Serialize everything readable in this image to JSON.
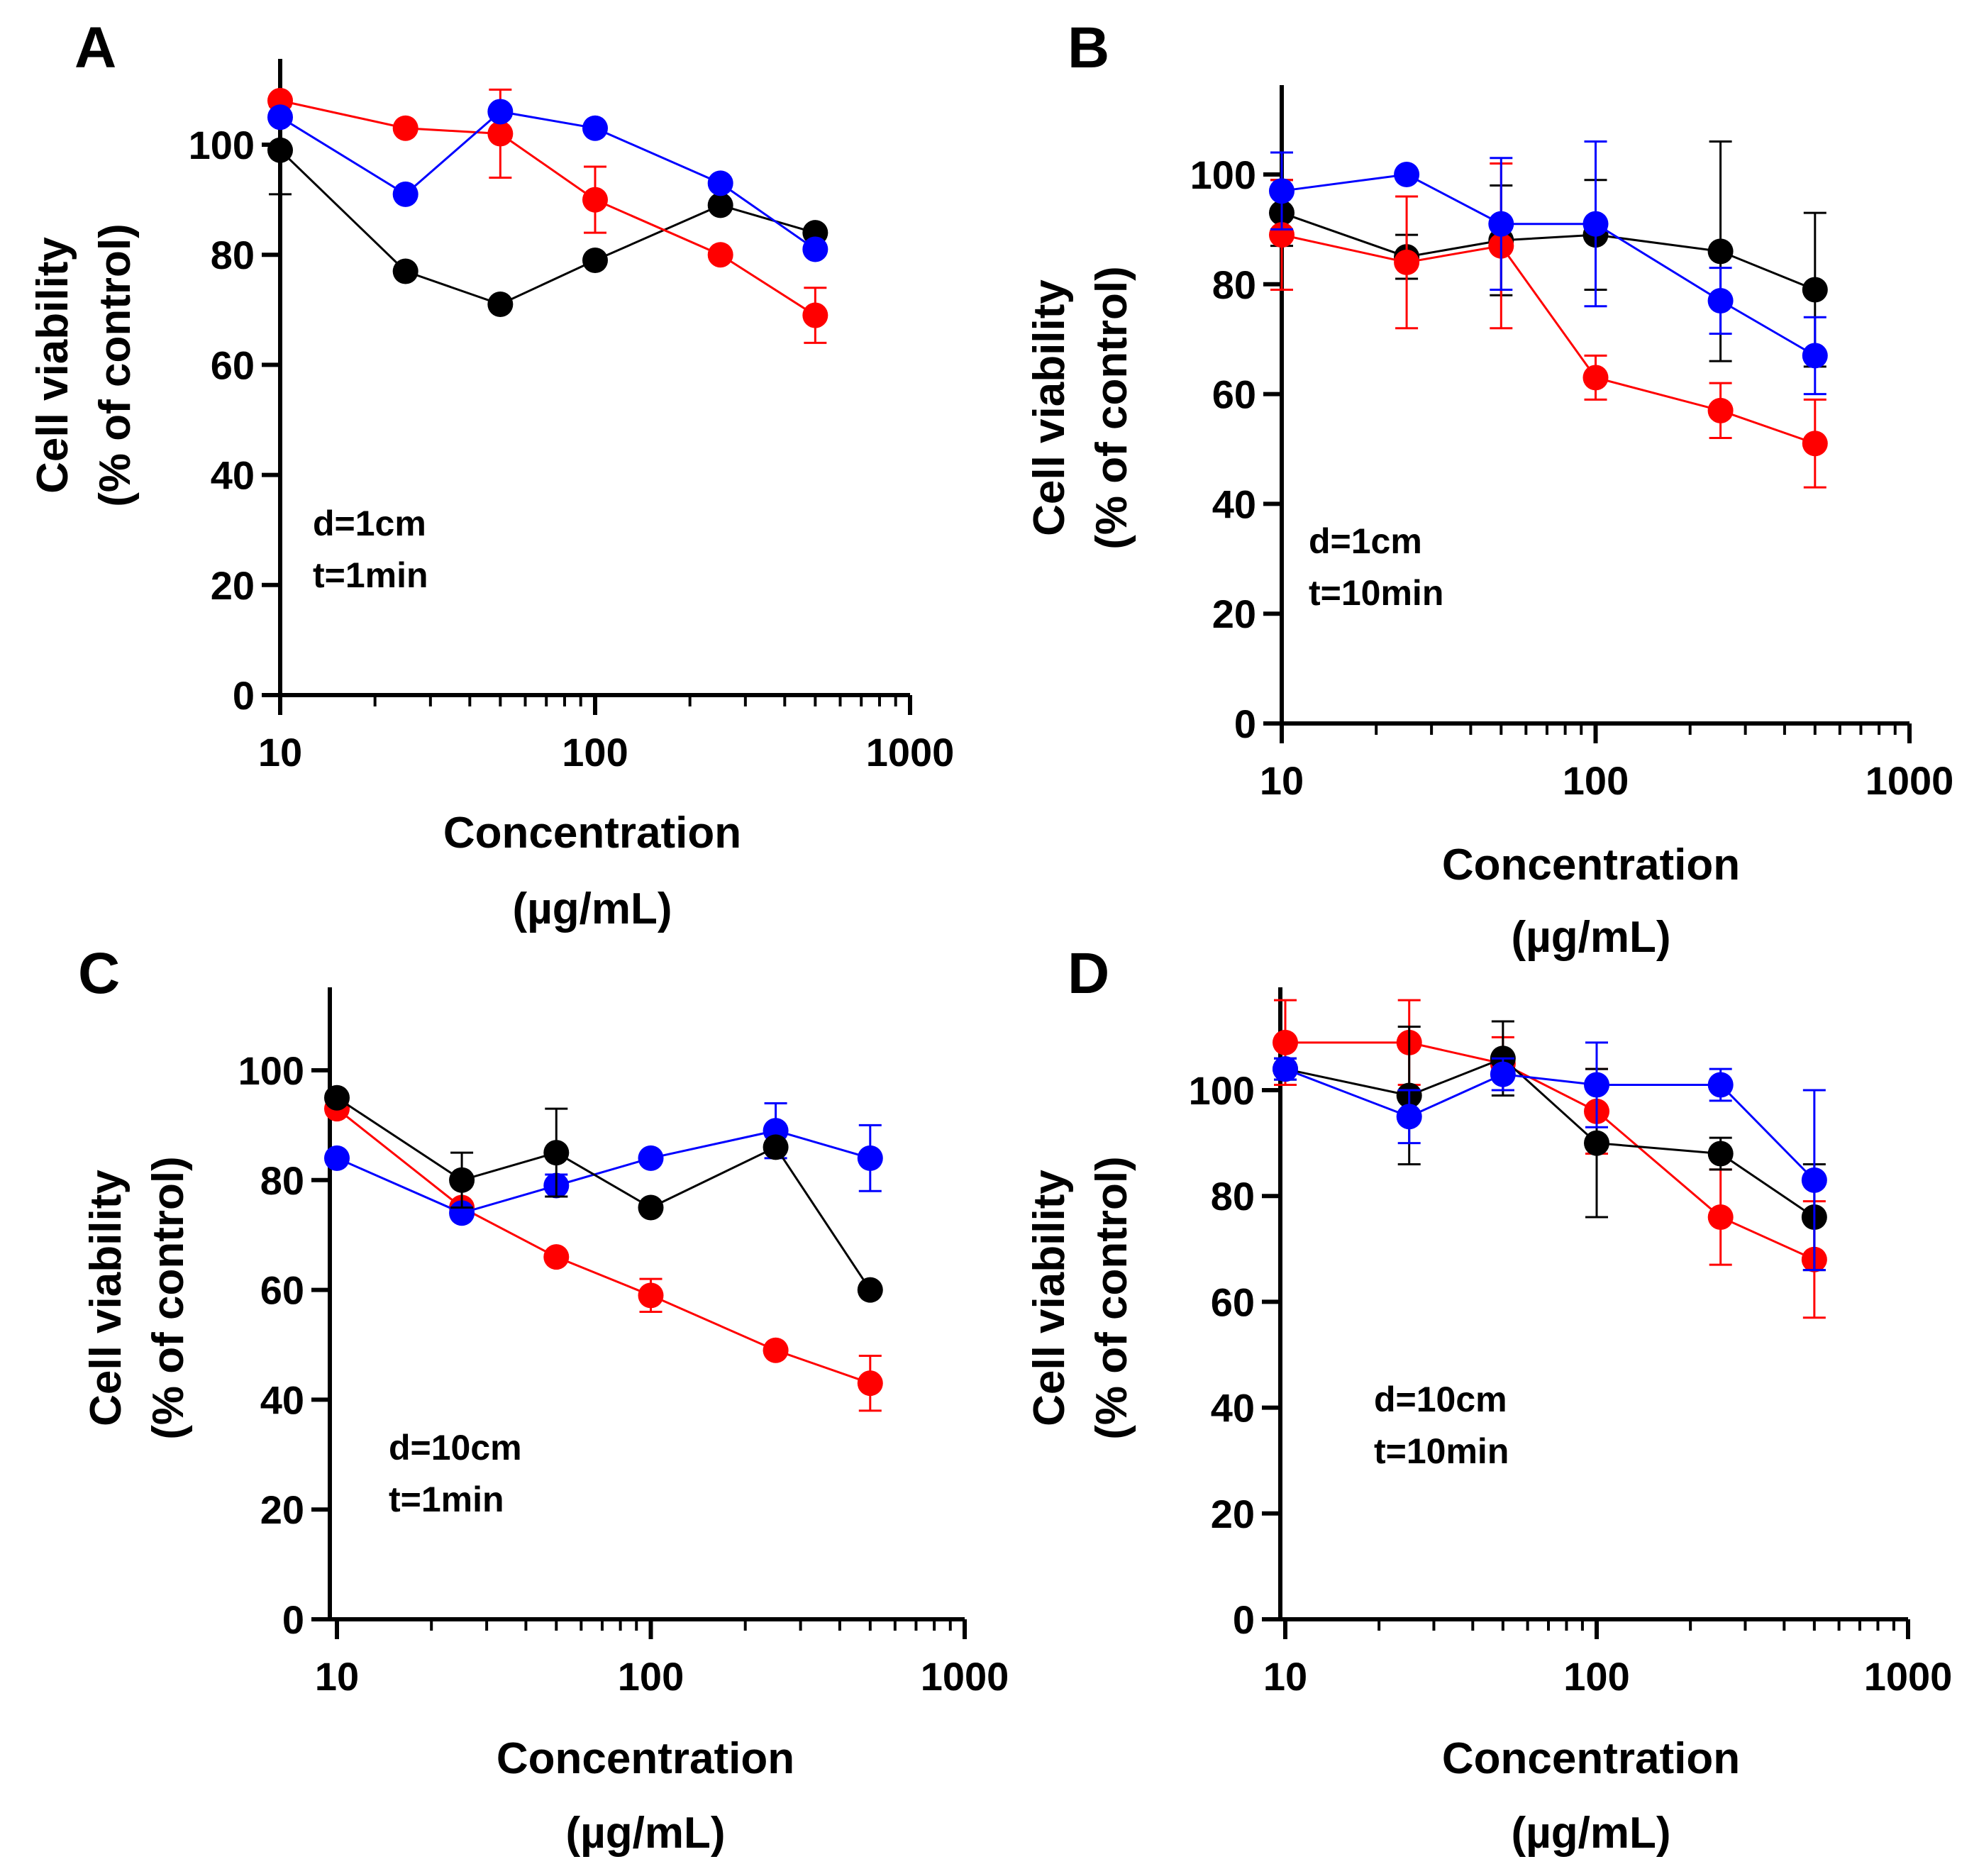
{
  "colors": {
    "series_red": "#ff0000",
    "series_blue": "#0000ff",
    "series_black": "#000000",
    "axis": "#000000"
  },
  "chart_data": [
    {
      "panel": "A",
      "type": "line",
      "xscale": "log",
      "xlim": [
        10,
        1000
      ],
      "ylim": [
        0,
        115
      ],
      "xticks": [
        "10",
        "100",
        "1000"
      ],
      "yticks": [
        "0",
        "20",
        "40",
        "60",
        "80",
        "100"
      ],
      "ylabel": [
        "Cell viability",
        "(% of control)"
      ],
      "xlabel": [
        "Concentration",
        "(µg/mL)"
      ],
      "annotation": [
        "d=1cm",
        "t=1min"
      ],
      "x": [
        10,
        25,
        50,
        100,
        250,
        500
      ],
      "series": [
        {
          "name": "black",
          "color": "#000000",
          "values": [
            99,
            77,
            71,
            79,
            89,
            84
          ],
          "errors": [
            8,
            0,
            0,
            0,
            0,
            0
          ]
        },
        {
          "name": "red",
          "color": "#ff0000",
          "values": [
            108,
            103,
            102,
            90,
            80,
            69
          ],
          "errors": [
            0,
            0,
            8,
            6,
            0,
            5
          ]
        },
        {
          "name": "blue",
          "color": "#0000ff",
          "values": [
            105,
            91,
            106,
            103,
            93,
            81
          ],
          "errors": [
            0,
            0,
            0,
            0,
            0,
            0
          ]
        }
      ]
    },
    {
      "panel": "B",
      "type": "line",
      "xscale": "log",
      "xlim": [
        10,
        1000
      ],
      "ylim": [
        0,
        115
      ],
      "xticks": [
        "10",
        "100",
        "1000"
      ],
      "yticks": [
        "0",
        "20",
        "40",
        "60",
        "80",
        "100"
      ],
      "ylabel": [
        "Cell viability",
        "(% of control)"
      ],
      "xlabel": [
        "Concentration",
        "(µg/mL)"
      ],
      "annotation": [
        "d=1cm",
        "t=10min"
      ],
      "x": [
        10,
        25,
        50,
        100,
        250,
        500
      ],
      "series": [
        {
          "name": "black",
          "color": "#000000",
          "values": [
            93,
            85,
            88,
            89,
            86,
            79
          ],
          "errors": [
            6,
            4,
            10,
            10,
            20,
            14
          ]
        },
        {
          "name": "red",
          "color": "#ff0000",
          "values": [
            89,
            84,
            87,
            63,
            57,
            51
          ],
          "errors": [
            10,
            12,
            15,
            4,
            5,
            8
          ]
        },
        {
          "name": "blue",
          "color": "#0000ff",
          "values": [
            97,
            100,
            91,
            91,
            77,
            67
          ],
          "errors": [
            7,
            0,
            12,
            15,
            6,
            7
          ]
        }
      ]
    },
    {
      "panel": "C",
      "type": "line",
      "xscale": "log",
      "xlim": [
        10,
        1000
      ],
      "ylim": [
        0,
        115
      ],
      "xticks": [
        "10",
        "100",
        "1000"
      ],
      "yticks": [
        "0",
        "20",
        "40",
        "60",
        "80",
        "100"
      ],
      "ylabel": [
        "Cell viability",
        "(% of control)"
      ],
      "xlabel": [
        "Concentration",
        "(µg/mL)"
      ],
      "annotation": [
        "d=10cm",
        "t=1min"
      ],
      "x": [
        10,
        25,
        50,
        100,
        250,
        500
      ],
      "series": [
        {
          "name": "red",
          "color": "#ff0000",
          "values": [
            93,
            75,
            66,
            59,
            49,
            43
          ],
          "errors": [
            0,
            0,
            0,
            3,
            0,
            5
          ]
        },
        {
          "name": "blue",
          "color": "#0000ff",
          "values": [
            84,
            74,
            79,
            84,
            89,
            84
          ],
          "errors": [
            0,
            0,
            2,
            0,
            5,
            6
          ]
        },
        {
          "name": "black",
          "color": "#000000",
          "values": [
            95,
            80,
            85,
            75,
            86,
            60
          ],
          "errors": [
            0,
            5,
            8,
            0,
            0,
            0
          ]
        }
      ]
    },
    {
      "panel": "D",
      "type": "line",
      "xscale": "log",
      "xlim": [
        10,
        1000
      ],
      "ylim": [
        0,
        115
      ],
      "xticks": [
        "10",
        "100",
        "1000"
      ],
      "yticks": [
        "0",
        "20",
        "40",
        "60",
        "80",
        "100"
      ],
      "ylabel": [
        "Cell viability",
        "(% of control)"
      ],
      "xlabel": [
        "Concentration",
        "(µg/mL)"
      ],
      "annotation": [
        "d=10cm",
        "t=10min"
      ],
      "x": [
        10,
        25,
        50,
        100,
        250,
        500
      ],
      "series": [
        {
          "name": "red",
          "color": "#ff0000",
          "values": [
            109,
            109,
            105,
            96,
            76,
            68
          ],
          "errors": [
            8,
            8,
            5,
            8,
            9,
            11
          ]
        },
        {
          "name": "black",
          "color": "#000000",
          "values": [
            104,
            99,
            106,
            90,
            88,
            76
          ],
          "errors": [
            2,
            13,
            7,
            14,
            3,
            10
          ]
        },
        {
          "name": "blue",
          "color": "#0000ff",
          "values": [
            104,
            95,
            103,
            101,
            101,
            83
          ],
          "errors": [
            2,
            5,
            3,
            8,
            3,
            17
          ]
        }
      ]
    }
  ]
}
